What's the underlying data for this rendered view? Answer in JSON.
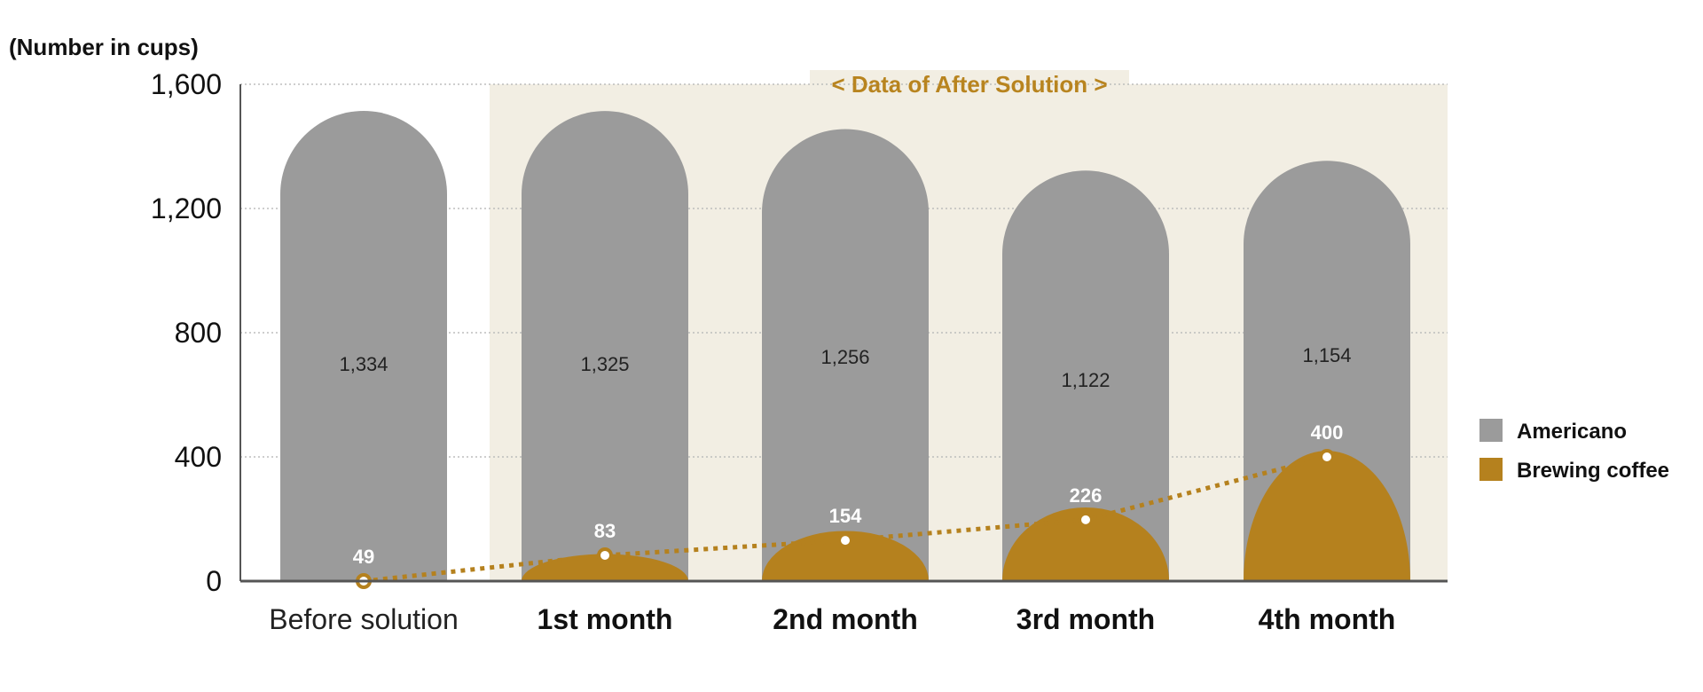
{
  "chart_data": {
    "type": "bar",
    "ylabel": "(Number in cups)",
    "ylim": [
      0,
      1600
    ],
    "yticks": [
      0,
      400,
      800,
      1200,
      1600
    ],
    "ytick_labels": [
      "0",
      "400",
      "800",
      "1,200",
      "1,600"
    ],
    "categories": [
      "Before solution",
      "1st month",
      "2nd month",
      "3rd month",
      "4th month"
    ],
    "series": [
      {
        "name": "Americano",
        "values": [
          1334,
          1325,
          1256,
          1122,
          1154
        ],
        "labels": [
          "1,334",
          "1,325",
          "1,256",
          "1,122",
          "1,154"
        ],
        "color": "#9b9b9b"
      },
      {
        "name": "Brewing coffee",
        "values": [
          49,
          83,
          154,
          226,
          400
        ],
        "labels": [
          "49",
          "83",
          "154",
          "226",
          "400"
        ],
        "color": "#b5811e"
      }
    ],
    "annotation": "< Data of After Solution >",
    "highlight_region_color": "#f2eee3",
    "grid": true,
    "legend_position": "right"
  }
}
